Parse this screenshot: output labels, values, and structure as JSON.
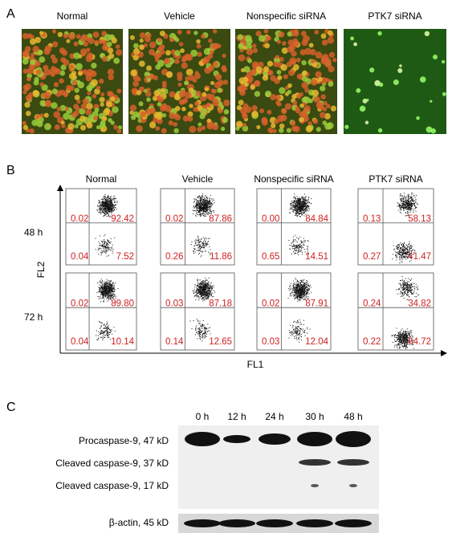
{
  "panel_labels": [
    "A",
    "B",
    "C"
  ],
  "panel_a": {
    "titles": [
      "Normal",
      "Vehicle",
      "Nonspecific siRNA",
      "PTK7 siRNA"
    ]
  },
  "panel_b": {
    "columns": [
      "Normal",
      "Vehicle",
      "Nonspecific siRNA",
      "PTK7 siRNA"
    ],
    "rows": [
      {
        "label": "48 h",
        "plots": [
          [
            "0.02",
            "92.42",
            "0.04",
            "7.52"
          ],
          [
            "0.02",
            "87.86",
            "0.26",
            "11.86"
          ],
          [
            "0.00",
            "84.84",
            "0.65",
            "14.51"
          ],
          [
            "0.13",
            "58.13",
            "0.27",
            "41.47"
          ]
        ]
      },
      {
        "label": "72 h",
        "plots": [
          [
            "0.02",
            "89.80",
            "0.04",
            "10.14"
          ],
          [
            "0.03",
            "87.18",
            "0.14",
            "12.65"
          ],
          [
            "0.02",
            "87.91",
            "0.03",
            "12.04"
          ],
          [
            "0.24",
            "34.82",
            "0.22",
            "64.72"
          ]
        ]
      }
    ],
    "y_axis_label": "FL2",
    "x_axis_label": "FL1"
  },
  "panel_c": {
    "lanes": [
      "0 h",
      "12 h",
      "24 h",
      "30 h",
      "48 h"
    ],
    "bands": [
      "Procaspase-9, 47 kD",
      "Cleaved caspase-9, 37 kD",
      "Cleaved caspase-9, 17 kD",
      "β-actin, 45 kD"
    ]
  }
}
